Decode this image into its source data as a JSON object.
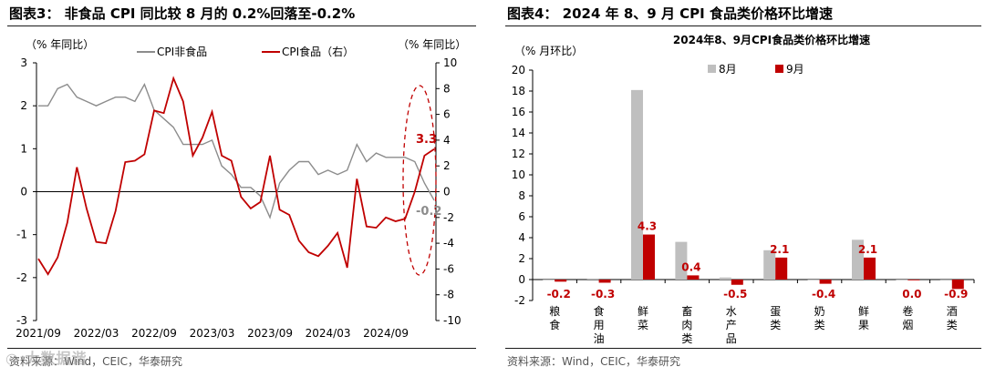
{
  "left": {
    "title": "图表3：  非食品 CPI 同比较 8 月的 0.2%回落至-0.2%",
    "source": "资料来源：Wind，CEIC，华泰研究",
    "chart_data": {
      "type": "line",
      "left_axis_unit": "（% 年同比）",
      "right_axis_unit": "（% 年同比）",
      "left_ylim": [
        -3,
        3
      ],
      "left_ticks": [
        "3",
        "2",
        "1",
        "0",
        "-1",
        "-2",
        "-3"
      ],
      "right_ylim": [
        -10,
        10
      ],
      "right_ticks": [
        "10",
        "8",
        "6",
        "4",
        "2",
        "0",
        "-2",
        "-4",
        "-6",
        "-8",
        "-10"
      ],
      "x_tick_labels": [
        "2021/09",
        "2022/03",
        "2022/09",
        "2023/03",
        "2023/09",
        "2024/03",
        "2024/09"
      ],
      "series": [
        {
          "name": "CPI非食品",
          "axis": "left",
          "color": "#8c8c8c",
          "values": [
            2.0,
            2.0,
            2.4,
            2.5,
            2.2,
            2.1,
            2.0,
            2.1,
            2.2,
            2.2,
            2.1,
            2.5,
            1.9,
            1.7,
            1.5,
            1.1,
            1.1,
            1.1,
            1.2,
            0.6,
            0.4,
            0.1,
            0.1,
            -0.1,
            -0.6,
            0.2,
            0.5,
            0.7,
            0.7,
            0.4,
            0.5,
            0.4,
            0.5,
            1.1,
            0.7,
            0.9,
            0.8,
            0.8,
            0.8,
            0.7,
            0.2,
            -0.2
          ]
        },
        {
          "name": "CPI食品（右）",
          "axis": "right",
          "color": "#c00000",
          "values": [
            -5.2,
            -6.4,
            -5.1,
            -2.4,
            1.9,
            -1.3,
            -3.9,
            -4.0,
            -1.5,
            2.3,
            2.4,
            2.9,
            6.3,
            6.1,
            8.8,
            7.0,
            2.8,
            4.2,
            6.2,
            2.8,
            2.4,
            -0.4,
            -1.3,
            -0.8,
            2.8,
            -1.4,
            -1.8,
            -3.8,
            -4.7,
            -5.0,
            -4.2,
            -3.2,
            -5.9,
            1.0,
            -2.7,
            -2.8,
            -2.0,
            -2.3,
            -2.1,
            0.0,
            2.8,
            3.3
          ]
        }
      ],
      "annotations": [
        {
          "label": "3.3",
          "color": "#c00000"
        },
        {
          "label": "-0.2",
          "color": "#8c8c8c"
        }
      ]
    }
  },
  "right": {
    "title": "图表4：  2024 年 8、9 月 CPI 食品类价格环比增速",
    "source": "资料来源：Wind，CEIC，华泰研究",
    "chart_data": {
      "type": "bar",
      "title": "2024年8、9月CPI食品类价格环比增速",
      "ylabel": "（% 月环比）",
      "ylim": [
        -2,
        20
      ],
      "y_ticks": [
        "20",
        "18",
        "16",
        "14",
        "12",
        "10",
        "8",
        "6",
        "4",
        "2",
        "0",
        "-2"
      ],
      "categories": [
        "粮食",
        "食用油",
        "鲜菜",
        "畜肉类",
        "水产品",
        "蛋类",
        "奶类",
        "鲜果",
        "卷烟",
        "酒类"
      ],
      "series": [
        {
          "name": "8月",
          "color": "#bfbfbf",
          "values": [
            0.0,
            0.1,
            18.1,
            3.6,
            0.2,
            2.8,
            0.0,
            3.8,
            0.0,
            -0.1
          ]
        },
        {
          "name": "9月",
          "color": "#c00000",
          "values": [
            -0.2,
            -0.3,
            4.3,
            0.4,
            -0.5,
            2.1,
            -0.4,
            2.1,
            0.0,
            -0.9
          ]
        }
      ],
      "data_labels": [
        "-0.2",
        "-0.3",
        "4.3",
        "0.4",
        "-0.5",
        "2.1",
        "-0.4",
        "2.1",
        "0.0",
        "-0.9"
      ]
    }
  },
  "watermark": "◎ 大数据谐"
}
